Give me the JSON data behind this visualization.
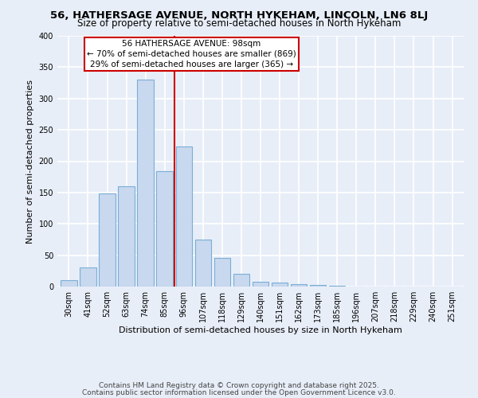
{
  "title": "56, HATHERSAGE AVENUE, NORTH HYKEHAM, LINCOLN, LN6 8LJ",
  "subtitle": "Size of property relative to semi-detached houses in North Hykeham",
  "xlabel": "Distribution of semi-detached houses by size in North Hykeham",
  "ylabel": "Number of semi-detached properties",
  "categories": [
    "30sqm",
    "41sqm",
    "52sqm",
    "63sqm",
    "74sqm",
    "85sqm",
    "96sqm",
    "107sqm",
    "118sqm",
    "129sqm",
    "140sqm",
    "151sqm",
    "162sqm",
    "173sqm",
    "185sqm",
    "196sqm",
    "207sqm",
    "218sqm",
    "229sqm",
    "240sqm",
    "251sqm"
  ],
  "values": [
    10,
    30,
    148,
    160,
    330,
    184,
    224,
    75,
    46,
    20,
    8,
    6,
    4,
    2,
    1,
    0,
    0,
    0,
    0,
    0,
    0
  ],
  "bar_color": "#c8d8ee",
  "bar_edge_color": "#7aaed6",
  "vline_index": 6,
  "vline_color": "#cc0000",
  "ylim": [
    0,
    400
  ],
  "yticks": [
    0,
    50,
    100,
    150,
    200,
    250,
    300,
    350,
    400
  ],
  "annotation_title": "56 HATHERSAGE AVENUE: 98sqm",
  "annotation_line1": "← 70% of semi-detached houses are smaller (869)",
  "annotation_line2": "29% of semi-detached houses are larger (365) →",
  "annotation_box_facecolor": "#ffffff",
  "annotation_box_edgecolor": "#cc0000",
  "footer1": "Contains HM Land Registry data © Crown copyright and database right 2025.",
  "footer2": "Contains public sector information licensed under the Open Government Licence v3.0.",
  "fig_facecolor": "#e8eef8",
  "plot_facecolor": "#e8eef8",
  "grid_color": "#ffffff",
  "title_fontsize": 9.5,
  "subtitle_fontsize": 8.5,
  "xlabel_fontsize": 8,
  "ylabel_fontsize": 8,
  "tick_fontsize": 7,
  "annotation_fontsize": 7.5,
  "footer_fontsize": 6.5
}
